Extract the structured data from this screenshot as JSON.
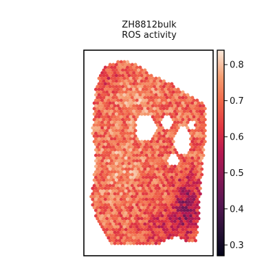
{
  "chart_data": {
    "type": "heatmap",
    "title_lines": [
      "ZH8812bulk",
      "ROS activity"
    ],
    "xlabel": "",
    "ylabel": "",
    "grid": false,
    "colormap": "rocket",
    "colorbar": {
      "position": "right",
      "vmin": 0.27,
      "vmax": 0.84,
      "ticks": [
        0.3,
        0.4,
        0.5,
        0.6,
        0.7,
        0.8
      ],
      "tick_labels": [
        "0.3",
        "0.4",
        "0.5",
        "0.6",
        "0.7",
        "0.8"
      ]
    },
    "value_distribution": {
      "typical": 0.68,
      "min_observed": 0.3,
      "max_observed": 0.83,
      "low_value_region": "right-lower edge"
    }
  }
}
